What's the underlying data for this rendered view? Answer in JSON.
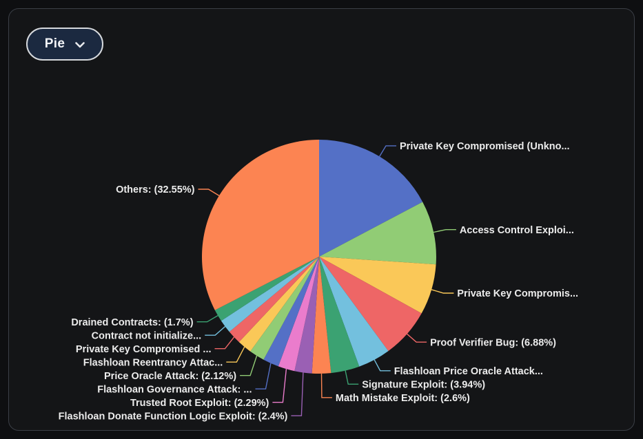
{
  "controls": {
    "chart_type_label": "Pie"
  },
  "theme": {
    "page_background": "#0e0f11",
    "card_background": "#141517",
    "card_border": "#3b3f46",
    "button_background": "#1b2940",
    "button_border": "#d6d9dd",
    "button_text": "#f2f4f7",
    "label_text": "#ececec"
  },
  "chart_data": {
    "type": "pie",
    "title": "",
    "legend_position": "none",
    "start_angle": "top",
    "direction": "clockwise",
    "palette": [
      "#5470c6",
      "#91cc75",
      "#fac858",
      "#ee6666",
      "#73c0de",
      "#3ba272",
      "#fc8452",
      "#9a60b4",
      "#ea7ccc"
    ],
    "slices": [
      {
        "label": "Private Key Compromised (Unkno...",
        "value": 17.25
      },
      {
        "label": "Access Control Exploi...",
        "value": 8.8
      },
      {
        "label": "Private Key Compromis...",
        "value": 7.0
      },
      {
        "label": "Proof Verifier Bug: (6.88%)",
        "value": 6.88
      },
      {
        "label": "Flashloan Price Oracle Attack...",
        "value": 4.5
      },
      {
        "label": "Signature Exploit: (3.94%)",
        "value": 3.94
      },
      {
        "label": "Math Mistake Exploit: (2.6%)",
        "value": 2.6
      },
      {
        "label": "Flashloan Donate Function Logic Exploit: (2.4%)",
        "value": 2.4
      },
      {
        "label": "Trusted Root Exploit: (2.29%)",
        "value": 2.29
      },
      {
        "label": "Flashloan Governance Attack: ...",
        "value": 2.2
      },
      {
        "label": "Price Oracle Attack: (2.12%)",
        "value": 2.12
      },
      {
        "label": "Flashloan Reentrancy Attac...",
        "value": 2.0
      },
      {
        "label": "Private Key Compromised ...",
        "value": 1.9
      },
      {
        "label": "Contract not initialize...",
        "value": 1.87
      },
      {
        "label": "Drained Contracts: (1.7%)",
        "value": 1.7
      },
      {
        "label": "Others: (32.55%)",
        "value": 32.55
      }
    ]
  }
}
